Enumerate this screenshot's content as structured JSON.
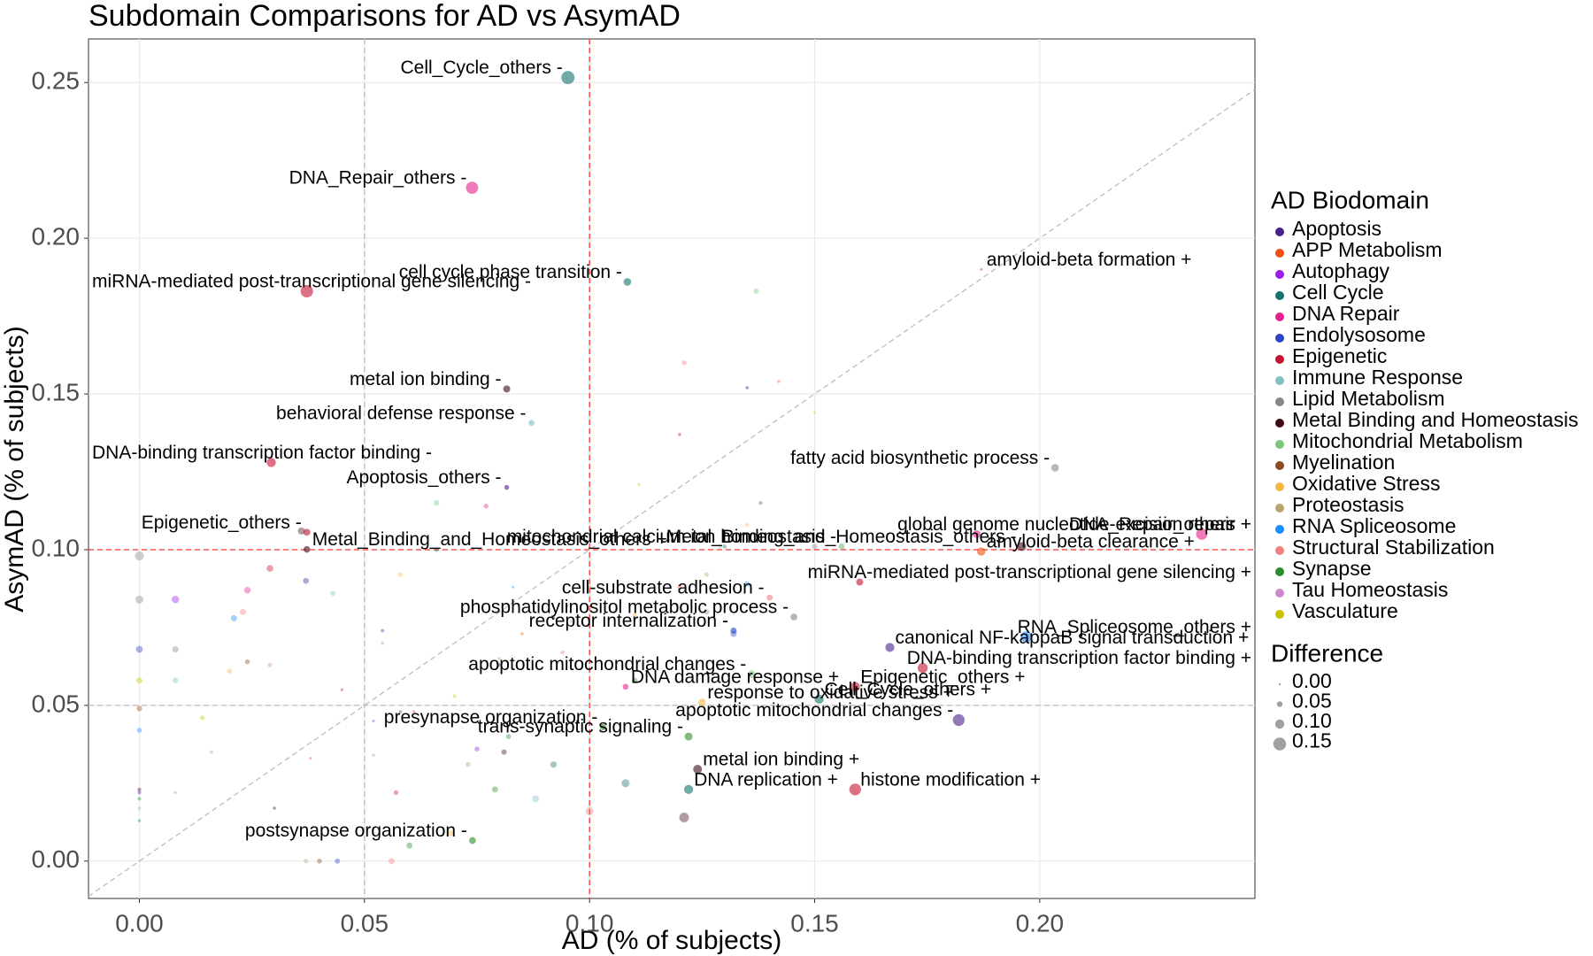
{
  "chart_data": {
    "type": "scatter",
    "title": "Subdomain Comparisons for AD vs AsymAD",
    "x_label": "AD (% of subjects)",
    "y_label": "AsymAD (% of subjects)",
    "legend_title": "AD Biodomain",
    "size_legend_title": "Difference",
    "size_legend": [
      {
        "value": 0,
        "label": "0.00"
      },
      0.05,
      {
        "value": 0.1,
        "label": "0.10"
      },
      0.15
    ],
    "xlim": [
      -0.0113,
      0.2478
    ],
    "ylim": [
      -0.012,
      0.264
    ],
    "xticks": [
      {
        "value": 0,
        "label": "0.00"
      },
      0.05,
      {
        "value": 0.1,
        "label": "0.10"
      },
      0.15,
      {
        "value": 0.2,
        "label": "0.20"
      }
    ],
    "yticks": [
      {
        "value": 0,
        "label": "0.00"
      },
      0.05,
      {
        "value": 0.1,
        "label": "0.10"
      },
      0.15,
      {
        "value": 0.2,
        "label": "0.20"
      },
      0.25
    ],
    "grid": true,
    "identity_line": true,
    "vlines": [
      {
        "value": 0.05,
        "color": "#bdbdbd"
      },
      {
        "value": 0.1,
        "color": "#ff3030"
      }
    ],
    "hlines": [
      {
        "value": 0.05,
        "color": "#bdbdbd"
      },
      {
        "value": 0.1,
        "color": "#ff3030"
      }
    ],
    "series": [
      {
        "name": "Apoptosis",
        "color": "#4b1f8c",
        "x": [
          0.0816,
          0.1667,
          0.182,
          0.0,
          0.037,
          0.058,
          0.08,
          0.092,
          0.135
        ],
        "y": [
          0.12,
          0.0686,
          0.0453,
          0.022,
          0.09,
          0.048,
          0.063,
          0.078,
          0.152
        ],
        "size": [
          0.038,
          0.098,
          0.137,
          0.022,
          0.053,
          0.01,
          0.017,
          0.014,
          0.017
        ],
        "labels": [
          "Apoptosis_others -",
          "canonical NF-kappaB signal transduction +",
          "apoptotic mitochondrial changes -",
          null,
          null,
          null,
          null,
          null,
          null
        ]
      },
      {
        "name": "APP Metabolism",
        "color": "#f2500f",
        "x": [
          0.187,
          0.187,
          0.142,
          0.12,
          0.1,
          0.085
        ],
        "y": [
          0.19,
          0.0994,
          0.154,
          0.088,
          0.088,
          0.073
        ],
        "size": [
          0.003,
          0.088,
          0.012,
          0.032,
          0.012,
          0.012
        ],
        "labels": [
          "amyloid-beta formation +",
          "amyloid-beta clearance +",
          null,
          null,
          null,
          null
        ]
      },
      {
        "name": "Autophagy",
        "color": "#9b1fe8",
        "x": [
          0.008,
          0.095,
          0.075,
          0.052
        ],
        "y": [
          0.084,
          0.082,
          0.036,
          0.045
        ],
        "size": [
          0.076,
          0.013,
          0.039,
          0.007
        ],
        "labels": [
          null,
          null,
          null,
          null
        ]
      },
      {
        "name": "Cell Cycle",
        "color": "#12736e",
        "x": [
          0.0952,
          0.1084,
          0.151,
          0.122,
          0.0,
          0.108,
          0.13,
          0.066,
          0.092
        ],
        "y": [
          0.2516,
          0.186,
          0.052,
          0.023,
          0.013,
          0.025,
          0.101,
          0.1,
          0.031
        ],
        "size": [
          0.156,
          0.078,
          0.099,
          0.099,
          0.013,
          0.083,
          0.029,
          0.034,
          0.061
        ],
        "labels": [
          "Cell_Cycle_others -",
          "cell cycle phase transition -",
          "Cell_Cycle_others +",
          "DNA replication +",
          null,
          null,
          null,
          null,
          null
        ]
      },
      {
        "name": "DNA Repair",
        "color": "#e6208f",
        "x": [
          0.0739,
          0.186,
          0.236,
          0.108,
          0.024,
          0.077,
          0.038,
          0.061
        ],
        "y": [
          0.2162,
          0.105,
          0.105,
          0.056,
          0.087,
          0.114,
          0.033,
          0.048
        ],
        "size": [
          0.142,
          0.081,
          0.131,
          0.052,
          0.063,
          0.037,
          0.005,
          0.013
        ],
        "labels": [
          "DNA_Repair_others -",
          "global genome nucleotide-excision repair +",
          "DNA_Repair_others +",
          "DNA damage response +",
          null,
          null,
          null,
          null
        ]
      },
      {
        "name": "Endolysosome",
        "color": "#2a44c4",
        "x": [
          0.132,
          0.0,
          0.044,
          0.054,
          0.132
        ],
        "y": [
          0.074,
          0.068,
          0.0,
          0.074,
          0.073
        ],
        "size": [
          0.058,
          0.068,
          0.044,
          0.02,
          0.059
        ],
        "labels": [
          "receptor internalization -",
          null,
          null,
          null,
          null
        ]
      },
      {
        "name": "Epigenetic",
        "color": "#c41230",
        "x": [
          0.0372,
          0.0293,
          0.0372,
          0.16,
          0.174,
          0.159,
          0.159,
          0.029,
          0.057,
          0.045,
          0.12
        ],
        "y": [
          0.183,
          0.128,
          0.1056,
          0.0896,
          0.062,
          0.056,
          0.023,
          0.094,
          0.022,
          0.055,
          0.137
        ],
        "size": [
          0.146,
          0.099,
          0.068,
          0.07,
          0.112,
          0.103,
          0.136,
          0.065,
          0.035,
          0.01,
          0.017
        ],
        "labels": [
          "miRNA-mediated post-transcriptional gene silencing -",
          "DNA-binding transcription factor binding -",
          "Epigenetic_others -",
          "miRNA-mediated post-transcriptional gene silencing +",
          "DNA-binding transcription factor binding +",
          "Epigenetic_others +",
          "histone modification +",
          null,
          null,
          null,
          null
        ]
      },
      {
        "name": "Immune Response",
        "color": "#7fc1c4",
        "x": [
          0.0871,
          0.008,
          0.043,
          0.088,
          0.129
        ],
        "y": [
          0.1407,
          0.058,
          0.086,
          0.02,
          0.101
        ],
        "size": [
          0.054,
          0.05,
          0.043,
          0.068,
          0.028
        ],
        "labels": [
          "behavioral defense response -",
          null,
          null,
          null,
          null
        ]
      },
      {
        "name": "Lipid Metabolism",
        "color": "#878787",
        "x": [
          0.2034,
          0.1454,
          0.0,
          0.008,
          0.126,
          0.15,
          0.0
        ],
        "y": [
          0.1263,
          0.0784,
          0.084,
          0.068,
          0.08,
          0.101,
          0.098
        ],
        "size": [
          0.077,
          0.067,
          0.084,
          0.06,
          0.046,
          0.049,
          0.098
        ],
        "labels": [
          "fatty acid biosynthetic process -",
          "phosphatidylinositol metabolic process -",
          null,
          null,
          null,
          null,
          null
        ]
      },
      {
        "name": "Metal Binding and Homeostasis",
        "color": "#3d0a14",
        "x": [
          0.0816,
          0.0372,
          0.196,
          0.124,
          0.0,
          0.081,
          0.036,
          0.03,
          0.121
        ],
        "y": [
          0.1516,
          0.1001,
          0.101,
          0.0295,
          0.023,
          0.035,
          0.106,
          0.017,
          0.014
        ],
        "size": [
          0.07,
          0.063,
          0.095,
          0.095,
          0.023,
          0.046,
          0.07,
          0.013,
          0.107
        ],
        "labels": [
          "metal ion binding -",
          "Metal_Binding_and_Homeostasis_others +",
          "Metal_Binding_and_Homeostasis_others -",
          "metal ion binding +",
          null,
          null,
          null,
          null,
          null
        ]
      },
      {
        "name": "Mitochondrial Metabolism",
        "color": "#7dc47d",
        "x": [
          0.156,
          0.136,
          0.137,
          0.066,
          0.08,
          0.016,
          0.0
        ],
        "y": [
          0.101,
          0.06,
          0.183,
          0.115,
          0.065,
          0.035,
          0.017
        ],
        "size": [
          0.055,
          0.076,
          0.046,
          0.049,
          0.015,
          0.019,
          0.017
        ],
        "labels": [
          "mitochondrial calcium ion homeostasis -",
          "apoptotic mitochondrial changes -",
          null,
          null,
          null,
          null,
          null
        ]
      },
      {
        "name": "Myelination",
        "color": "#8b4a1f",
        "x": [
          0.138,
          0.024,
          0.0,
          0.04
        ],
        "y": [
          0.115,
          0.064,
          0.049,
          0.0
        ],
        "size": [
          0.023,
          0.04,
          0.049,
          0.04
        ],
        "labels": [
          null,
          null,
          null,
          null
        ]
      },
      {
        "name": "Oxidative Stress",
        "color": "#f5b744",
        "x": [
          0.125,
          0.069,
          0.058,
          0.11,
          0.135,
          0.02
        ],
        "y": [
          0.051,
          0.009,
          0.092,
          0.079,
          0.108,
          0.061
        ],
        "size": [
          0.074,
          0.06,
          0.034,
          0.031,
          0.027,
          0.041
        ],
        "labels": [
          "response to oxidative stress +",
          null,
          null,
          null,
          null,
          null
        ]
      },
      {
        "name": "Proteostasis",
        "color": "#bba36e",
        "x": [
          0.0,
          0.037,
          0.052,
          0.126,
          0.073
        ],
        "y": [
          0.0,
          0.0,
          0.034,
          0.092,
          0.031
        ],
        "size": [
          0,
          0.037,
          0.018,
          0.034,
          0.042
        ],
        "labels": [
          null,
          null,
          null,
          null,
          null
        ]
      },
      {
        "name": "RNA Spliceosome",
        "color": "#1a8cff",
        "x": [
          0.197,
          0.021,
          0.083,
          0.0,
          0.135
        ],
        "y": [
          0.072,
          0.078,
          0.088,
          0.042,
          0.089
        ],
        "size": [
          0.125,
          0.057,
          0.005,
          0.042,
          0.046
        ],
        "labels": [
          "RNA_Spliceosome_others +",
          null,
          null,
          null,
          null
        ]
      },
      {
        "name": "Structural Stabilization",
        "color": "#f07f7f",
        "x": [
          0.14,
          0.121,
          0.023,
          0.1,
          0.094,
          0.056
        ],
        "y": [
          0.0846,
          0.16,
          0.08,
          0.016,
          0.067,
          0.0
        ],
        "size": [
          0.055,
          0.039,
          0.057,
          0.084,
          0.027,
          0.056
        ],
        "labels": [
          "cell-substrate adhesion -",
          null,
          null,
          null,
          null,
          null
        ]
      },
      {
        "name": "Synapse",
        "color": "#2a8c2a",
        "x": [
          0.122,
          0.103,
          0.074,
          0.0,
          0.082,
          0.11,
          0.079,
          0.06
        ],
        "y": [
          0.04,
          0.043,
          0.0066,
          0.02,
          0.04,
          0.058,
          0.023,
          0.005
        ],
        "size": [
          0.082,
          0.06,
          0.067,
          0.02,
          0.042,
          0.052,
          0.056,
          0.055
        ],
        "labels": [
          "trans-synaptic signaling -",
          "presynapse organization -",
          "postsynapse organization -",
          null,
          null,
          null,
          null,
          null
        ]
      },
      {
        "name": "Tau Homeostasis",
        "color": "#cc8acc",
        "x": [
          0.008,
          0.029,
          0.054,
          0.096
        ],
        "y": [
          0.022,
          0.063,
          0.07,
          0.077
        ],
        "size": [
          0.014,
          0.034,
          0.016,
          0.019
        ],
        "labels": [
          null,
          null,
          null,
          null
        ]
      },
      {
        "name": "Vasculature",
        "color": "#c8c200",
        "x": [
          0.0,
          0.014,
          0.07,
          0.111,
          0.15
        ],
        "y": [
          0.058,
          0.046,
          0.053,
          0.121,
          0.144
        ],
        "size": [
          0.058,
          0.032,
          0.017,
          0.01,
          0.006
        ],
        "labels": [
          null,
          null,
          null,
          null,
          null
        ]
      }
    ]
  }
}
